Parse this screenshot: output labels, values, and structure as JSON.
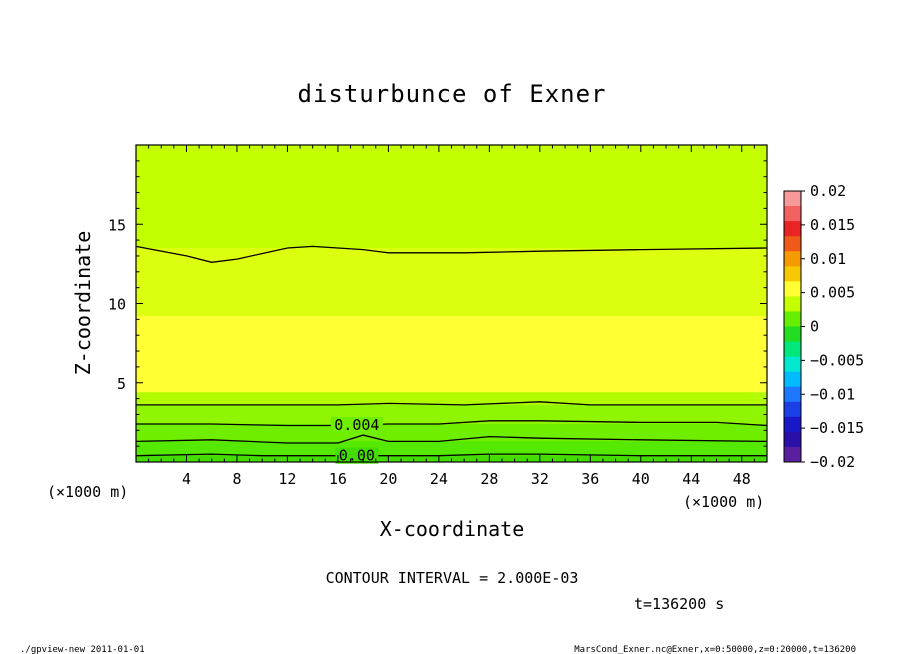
{
  "chart_data": {
    "type": "contour",
    "title": "disturbunce of Exner",
    "xlabel": "X-coordinate",
    "ylabel": "Z-coordinate",
    "x_unit": "(×1000 m)",
    "y_unit": "(×1000 m)",
    "xlim": [
      0,
      50
    ],
    "ylim": [
      0,
      20
    ],
    "x_ticks": [
      4,
      8,
      12,
      16,
      20,
      24,
      28,
      32,
      36,
      40,
      44,
      48
    ],
    "y_ticks": [
      5,
      10,
      15
    ],
    "contour_interval_text": "CONTOUR INTERVAL = 2.000E-03",
    "time_text": "t=136200 s",
    "colorbar": {
      "min": -0.02,
      "max": 0.02,
      "ticks": [
        "0.02",
        "0.015",
        "0.01",
        "0.005",
        "0",
        "−0.005",
        "−0.01",
        "−0.015",
        "−0.02"
      ],
      "colors": [
        "#f89999",
        "#f26060",
        "#e82424",
        "#f05a18",
        "#f59a00",
        "#f5c800",
        "#ffff33",
        "#c3ff00",
        "#66ee00",
        "#22dd22",
        "#00e87a",
        "#00e8d0",
        "#00bbff",
        "#1e78ff",
        "#1a40e6",
        "#1818c8",
        "#2a0fa8",
        "#5a1f9e"
      ]
    },
    "fill_bands": [
      {
        "z_top": 0.4,
        "color": "#44dd00"
      },
      {
        "z_top": 1.3,
        "color": "#55e800"
      },
      {
        "z_top": 2.4,
        "color": "#6fee00"
      },
      {
        "z_top": 3.6,
        "color": "#90f500"
      },
      {
        "z_top": 4.4,
        "color": "#b2fb00"
      },
      {
        "z_top": 9.2,
        "color": "#ffff33"
      },
      {
        "z_top": 13.5,
        "color": "#dcff10"
      },
      {
        "z_top": 20.0,
        "color": "#c3ff00"
      }
    ],
    "contours": [
      {
        "level_label": "",
        "x": [
          0,
          4,
          6,
          8,
          12,
          14,
          18,
          20,
          26,
          32,
          40,
          50
        ],
        "z": [
          13.6,
          13.0,
          12.6,
          12.8,
          13.5,
          13.6,
          13.4,
          13.2,
          13.2,
          13.3,
          13.4,
          13.5
        ]
      },
      {
        "level_label": "",
        "x": [
          0,
          8,
          16,
          20,
          26,
          32,
          36,
          44,
          50
        ],
        "z": [
          3.6,
          3.6,
          3.6,
          3.7,
          3.6,
          3.8,
          3.6,
          3.6,
          3.6
        ]
      },
      {
        "level_label": "0.004",
        "label_x": 17.5,
        "x": [
          0,
          6,
          12,
          16,
          20,
          24,
          28,
          32,
          40,
          46,
          50
        ],
        "z": [
          2.4,
          2.4,
          2.3,
          2.3,
          2.4,
          2.4,
          2.6,
          2.6,
          2.5,
          2.5,
          2.3
        ]
      },
      {
        "level_label": "",
        "x": [
          0,
          6,
          12,
          16,
          18,
          20,
          24,
          28,
          32,
          40,
          50
        ],
        "z": [
          1.3,
          1.4,
          1.2,
          1.2,
          1.7,
          1.3,
          1.3,
          1.6,
          1.5,
          1.4,
          1.3
        ]
      },
      {
        "level_label": "0.00",
        "label_x": 17.5,
        "x": [
          0,
          6,
          10,
          16,
          20,
          24,
          28,
          32,
          40,
          50
        ],
        "z": [
          0.4,
          0.5,
          0.4,
          0.4,
          0.4,
          0.4,
          0.5,
          0.5,
          0.4,
          0.4
        ]
      }
    ]
  },
  "footer": {
    "left": "./gpview-new  2011-01-01",
    "right": "MarsCond_Exner.nc@Exner,x=0:50000,z=0:20000,t=136200"
  }
}
